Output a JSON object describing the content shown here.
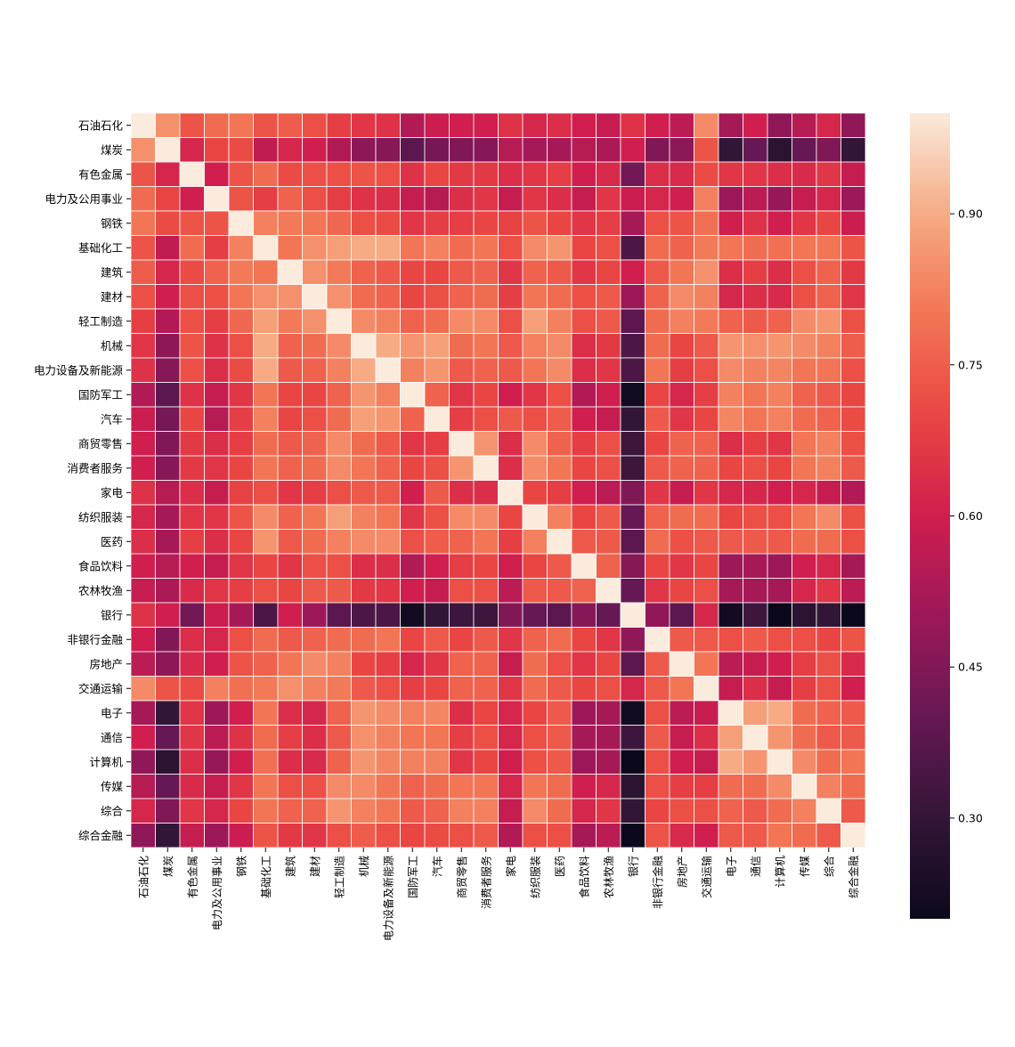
{
  "chart_data": {
    "type": "heatmap",
    "title": "",
    "xlabel": "",
    "ylabel": "",
    "labels": [
      "石油石化",
      "煤炭",
      "有色金属",
      "电力及公用事业",
      "钢铁",
      "基础化工",
      "建筑",
      "建材",
      "轻工制造",
      "机械",
      "电力设备及新能源",
      "国防军工",
      "汽车",
      "商贸零售",
      "消费者服务",
      "家电",
      "纺织服装",
      "医药",
      "食品饮料",
      "农林牧渔",
      "银行",
      "非银行金融",
      "房地产",
      "交通运输",
      "电子",
      "通信",
      "计算机",
      "传媒",
      "综合",
      "综合金融"
    ],
    "colorbar": {
      "ticks": [
        0.9,
        0.75,
        0.6,
        0.45,
        0.3
      ],
      "tick_labels": [
        "0.90",
        "0.75",
        "0.60",
        "0.45",
        "0.30"
      ],
      "range": [
        0.2,
        1.0
      ]
    },
    "grid": true,
    "colormap": "rocket",
    "matrix": [
      [
        1.0,
        0.85,
        0.73,
        0.78,
        0.8,
        0.73,
        0.75,
        0.72,
        0.68,
        0.66,
        0.65,
        0.54,
        0.59,
        0.6,
        0.6,
        0.65,
        0.62,
        0.64,
        0.6,
        0.58,
        0.65,
        0.6,
        0.56,
        0.84,
        0.52,
        0.6,
        0.48,
        0.55,
        0.62,
        0.48
      ],
      [
        0.85,
        1.0,
        0.62,
        0.7,
        0.71,
        0.57,
        0.62,
        0.6,
        0.54,
        0.47,
        0.46,
        0.38,
        0.43,
        0.45,
        0.46,
        0.55,
        0.52,
        0.52,
        0.55,
        0.53,
        0.6,
        0.45,
        0.47,
        0.73,
        0.3,
        0.4,
        0.28,
        0.4,
        0.45,
        0.3
      ],
      [
        0.73,
        0.62,
        1.0,
        0.6,
        0.73,
        0.78,
        0.71,
        0.72,
        0.72,
        0.73,
        0.72,
        0.65,
        0.7,
        0.67,
        0.67,
        0.64,
        0.66,
        0.68,
        0.6,
        0.63,
        0.42,
        0.64,
        0.63,
        0.71,
        0.66,
        0.66,
        0.64,
        0.63,
        0.66,
        0.58
      ],
      [
        0.78,
        0.7,
        0.6,
        1.0,
        0.73,
        0.68,
        0.76,
        0.72,
        0.68,
        0.65,
        0.64,
        0.58,
        0.55,
        0.64,
        0.66,
        0.58,
        0.66,
        0.64,
        0.58,
        0.66,
        0.59,
        0.62,
        0.6,
        0.82,
        0.5,
        0.56,
        0.49,
        0.58,
        0.62,
        0.5
      ],
      [
        0.8,
        0.71,
        0.73,
        0.73,
        1.0,
        0.82,
        0.81,
        0.8,
        0.77,
        0.72,
        0.71,
        0.66,
        0.68,
        0.68,
        0.7,
        0.69,
        0.73,
        0.7,
        0.66,
        0.68,
        0.52,
        0.72,
        0.73,
        0.79,
        0.6,
        0.65,
        0.6,
        0.66,
        0.7,
        0.59
      ],
      [
        0.73,
        0.57,
        0.78,
        0.68,
        0.82,
        1.0,
        0.8,
        0.85,
        0.88,
        0.9,
        0.9,
        0.8,
        0.82,
        0.78,
        0.8,
        0.72,
        0.84,
        0.86,
        0.7,
        0.72,
        0.35,
        0.78,
        0.76,
        0.81,
        0.8,
        0.78,
        0.79,
        0.8,
        0.8,
        0.73
      ],
      [
        0.75,
        0.62,
        0.71,
        0.76,
        0.81,
        0.8,
        1.0,
        0.85,
        0.81,
        0.76,
        0.74,
        0.7,
        0.7,
        0.74,
        0.76,
        0.66,
        0.76,
        0.74,
        0.66,
        0.7,
        0.6,
        0.74,
        0.8,
        0.85,
        0.64,
        0.68,
        0.64,
        0.72,
        0.76,
        0.67
      ],
      [
        0.72,
        0.6,
        0.72,
        0.72,
        0.8,
        0.85,
        0.85,
        1.0,
        0.85,
        0.78,
        0.76,
        0.7,
        0.72,
        0.76,
        0.78,
        0.68,
        0.8,
        0.78,
        0.72,
        0.74,
        0.5,
        0.76,
        0.84,
        0.82,
        0.62,
        0.64,
        0.63,
        0.72,
        0.76,
        0.66
      ],
      [
        0.68,
        0.54,
        0.72,
        0.68,
        0.77,
        0.88,
        0.81,
        0.85,
        1.0,
        0.84,
        0.82,
        0.76,
        0.78,
        0.84,
        0.84,
        0.72,
        0.88,
        0.82,
        0.72,
        0.74,
        0.38,
        0.78,
        0.82,
        0.81,
        0.76,
        0.74,
        0.76,
        0.84,
        0.86,
        0.72
      ],
      [
        0.66,
        0.47,
        0.73,
        0.65,
        0.72,
        0.9,
        0.76,
        0.78,
        0.84,
        1.0,
        0.9,
        0.86,
        0.88,
        0.78,
        0.8,
        0.74,
        0.82,
        0.84,
        0.64,
        0.67,
        0.35,
        0.78,
        0.7,
        0.74,
        0.86,
        0.85,
        0.86,
        0.84,
        0.82,
        0.75
      ],
      [
        0.65,
        0.46,
        0.72,
        0.64,
        0.71,
        0.9,
        0.74,
        0.76,
        0.82,
        0.9,
        1.0,
        0.82,
        0.86,
        0.74,
        0.76,
        0.74,
        0.8,
        0.84,
        0.64,
        0.66,
        0.35,
        0.8,
        0.68,
        0.72,
        0.84,
        0.82,
        0.83,
        0.8,
        0.8,
        0.72
      ],
      [
        0.54,
        0.38,
        0.65,
        0.58,
        0.66,
        0.8,
        0.7,
        0.7,
        0.76,
        0.86,
        0.82,
        1.0,
        0.76,
        0.66,
        0.7,
        0.6,
        0.66,
        0.72,
        0.54,
        0.6,
        0.22,
        0.7,
        0.62,
        0.68,
        0.82,
        0.8,
        0.82,
        0.76,
        0.74,
        0.7
      ],
      [
        0.59,
        0.43,
        0.7,
        0.55,
        0.68,
        0.82,
        0.7,
        0.72,
        0.78,
        0.88,
        0.86,
        0.76,
        1.0,
        0.68,
        0.72,
        0.74,
        0.72,
        0.75,
        0.6,
        0.58,
        0.3,
        0.74,
        0.66,
        0.7,
        0.83,
        0.8,
        0.82,
        0.78,
        0.76,
        0.71
      ],
      [
        0.6,
        0.45,
        0.67,
        0.64,
        0.68,
        0.78,
        0.74,
        0.76,
        0.84,
        0.78,
        0.74,
        0.66,
        0.68,
        1.0,
        0.86,
        0.64,
        0.84,
        0.76,
        0.68,
        0.72,
        0.32,
        0.7,
        0.76,
        0.76,
        0.64,
        0.68,
        0.66,
        0.8,
        0.82,
        0.72
      ],
      [
        0.6,
        0.46,
        0.67,
        0.66,
        0.7,
        0.8,
        0.76,
        0.78,
        0.84,
        0.8,
        0.76,
        0.7,
        0.72,
        0.86,
        1.0,
        0.64,
        0.84,
        0.8,
        0.7,
        0.72,
        0.32,
        0.74,
        0.76,
        0.76,
        0.7,
        0.72,
        0.7,
        0.8,
        0.82,
        0.74
      ],
      [
        0.65,
        0.55,
        0.64,
        0.58,
        0.69,
        0.72,
        0.66,
        0.68,
        0.72,
        0.74,
        0.74,
        0.6,
        0.74,
        0.64,
        0.64,
        1.0,
        0.7,
        0.68,
        0.6,
        0.56,
        0.45,
        0.66,
        0.58,
        0.66,
        0.62,
        0.62,
        0.6,
        0.62,
        0.58,
        0.54
      ],
      [
        0.62,
        0.52,
        0.66,
        0.66,
        0.73,
        0.84,
        0.76,
        0.8,
        0.88,
        0.82,
        0.8,
        0.66,
        0.72,
        0.84,
        0.84,
        0.7,
        1.0,
        0.82,
        0.7,
        0.74,
        0.4,
        0.76,
        0.78,
        0.78,
        0.7,
        0.72,
        0.72,
        0.8,
        0.84,
        0.72
      ],
      [
        0.64,
        0.52,
        0.68,
        0.64,
        0.7,
        0.86,
        0.74,
        0.78,
        0.82,
        0.84,
        0.84,
        0.72,
        0.75,
        0.76,
        0.8,
        0.68,
        0.82,
        1.0,
        0.74,
        0.74,
        0.38,
        0.78,
        0.72,
        0.74,
        0.74,
        0.74,
        0.74,
        0.78,
        0.78,
        0.72
      ],
      [
        0.6,
        0.55,
        0.6,
        0.58,
        0.66,
        0.7,
        0.66,
        0.72,
        0.72,
        0.64,
        0.64,
        0.54,
        0.6,
        0.68,
        0.7,
        0.6,
        0.7,
        0.74,
        1.0,
        0.76,
        0.46,
        0.7,
        0.66,
        0.7,
        0.5,
        0.52,
        0.5,
        0.6,
        0.62,
        0.52
      ],
      [
        0.58,
        0.53,
        0.63,
        0.66,
        0.68,
        0.72,
        0.7,
        0.74,
        0.74,
        0.67,
        0.66,
        0.6,
        0.58,
        0.72,
        0.72,
        0.56,
        0.74,
        0.74,
        0.76,
        1.0,
        0.4,
        0.66,
        0.7,
        0.72,
        0.52,
        0.52,
        0.52,
        0.62,
        0.66,
        0.56
      ],
      [
        0.65,
        0.6,
        0.42,
        0.59,
        0.52,
        0.35,
        0.6,
        0.5,
        0.38,
        0.35,
        0.35,
        0.22,
        0.3,
        0.32,
        0.32,
        0.45,
        0.4,
        0.38,
        0.46,
        0.4,
        1.0,
        0.48,
        0.38,
        0.62,
        0.22,
        0.32,
        0.2,
        0.28,
        0.3,
        0.2
      ],
      [
        0.6,
        0.45,
        0.64,
        0.62,
        0.72,
        0.78,
        0.74,
        0.76,
        0.78,
        0.78,
        0.8,
        0.7,
        0.74,
        0.7,
        0.74,
        0.66,
        0.76,
        0.78,
        0.7,
        0.66,
        0.48,
        1.0,
        0.74,
        0.74,
        0.72,
        0.74,
        0.72,
        0.72,
        0.7,
        0.73
      ],
      [
        0.56,
        0.47,
        0.63,
        0.6,
        0.73,
        0.76,
        0.8,
        0.84,
        0.82,
        0.7,
        0.68,
        0.62,
        0.66,
        0.76,
        0.76,
        0.58,
        0.78,
        0.72,
        0.66,
        0.7,
        0.38,
        0.74,
        1.0,
        0.8,
        0.56,
        0.58,
        0.6,
        0.68,
        0.72,
        0.63
      ],
      [
        0.84,
        0.73,
        0.71,
        0.82,
        0.79,
        0.81,
        0.85,
        0.82,
        0.81,
        0.74,
        0.72,
        0.68,
        0.7,
        0.76,
        0.76,
        0.66,
        0.78,
        0.74,
        0.7,
        0.72,
        0.62,
        0.74,
        0.8,
        1.0,
        0.58,
        0.64,
        0.58,
        0.68,
        0.72,
        0.6
      ],
      [
        0.52,
        0.3,
        0.66,
        0.5,
        0.6,
        0.8,
        0.64,
        0.62,
        0.76,
        0.86,
        0.84,
        0.82,
        0.83,
        0.64,
        0.7,
        0.62,
        0.7,
        0.74,
        0.5,
        0.52,
        0.22,
        0.72,
        0.56,
        0.58,
        1.0,
        0.88,
        0.9,
        0.78,
        0.76,
        0.74
      ],
      [
        0.6,
        0.4,
        0.66,
        0.56,
        0.65,
        0.78,
        0.68,
        0.64,
        0.74,
        0.85,
        0.82,
        0.8,
        0.8,
        0.68,
        0.72,
        0.62,
        0.72,
        0.74,
        0.52,
        0.52,
        0.32,
        0.74,
        0.58,
        0.64,
        0.88,
        1.0,
        0.86,
        0.78,
        0.74,
        0.74
      ],
      [
        0.48,
        0.28,
        0.64,
        0.49,
        0.6,
        0.79,
        0.64,
        0.63,
        0.76,
        0.86,
        0.83,
        0.82,
        0.82,
        0.66,
        0.7,
        0.6,
        0.72,
        0.74,
        0.5,
        0.52,
        0.2,
        0.72,
        0.6,
        0.58,
        0.9,
        0.86,
        1.0,
        0.84,
        0.78,
        0.8
      ],
      [
        0.55,
        0.4,
        0.63,
        0.58,
        0.66,
        0.8,
        0.72,
        0.72,
        0.84,
        0.84,
        0.8,
        0.76,
        0.78,
        0.8,
        0.8,
        0.62,
        0.8,
        0.78,
        0.6,
        0.62,
        0.28,
        0.72,
        0.68,
        0.68,
        0.78,
        0.78,
        0.84,
        1.0,
        0.82,
        0.78
      ],
      [
        0.62,
        0.45,
        0.66,
        0.62,
        0.7,
        0.8,
        0.76,
        0.76,
        0.86,
        0.82,
        0.8,
        0.74,
        0.76,
        0.82,
        0.82,
        0.58,
        0.84,
        0.78,
        0.62,
        0.66,
        0.3,
        0.7,
        0.72,
        0.72,
        0.76,
        0.74,
        0.78,
        0.82,
        1.0,
        0.74
      ],
      [
        0.48,
        0.3,
        0.58,
        0.5,
        0.59,
        0.73,
        0.67,
        0.66,
        0.72,
        0.75,
        0.72,
        0.7,
        0.71,
        0.72,
        0.74,
        0.54,
        0.72,
        0.72,
        0.52,
        0.56,
        0.2,
        0.73,
        0.63,
        0.6,
        0.74,
        0.74,
        0.8,
        0.78,
        0.74,
        1.0
      ]
    ]
  }
}
